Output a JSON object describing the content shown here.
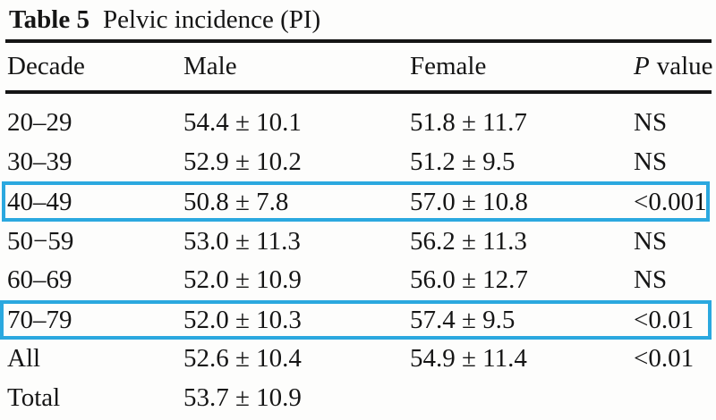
{
  "title": {
    "label": "Table 5",
    "text": "Pelvic incidence (PI)"
  },
  "table": {
    "header": {
      "decade": "Decade",
      "male": "Male",
      "female": "Female",
      "p_italic": "P",
      "p_rest": "value"
    },
    "rows": [
      {
        "decade": "20–29",
        "male": "54.4 ± 10.1",
        "female": "51.8 ± 11.7",
        "p": "NS",
        "highlighted": false
      },
      {
        "decade": "30–39",
        "male": "52.9 ± 10.2",
        "female": "51.2 ± 9.5",
        "p": "NS",
        "highlighted": false
      },
      {
        "decade": "40–49",
        "male": "50.8 ± 7.8",
        "female": "57.0 ± 10.8",
        "p": "<0.001",
        "highlighted": true
      },
      {
        "decade": "50−59",
        "male": "53.0 ± 11.3",
        "female": "56.2 ± 11.3",
        "p": "NS",
        "highlighted": false
      },
      {
        "decade": "60–69",
        "male": "52.0 ± 10.9",
        "female": "56.0 ± 12.7",
        "p": "NS",
        "highlighted": false
      },
      {
        "decade": "70–79",
        "male": "52.0 ± 10.3",
        "female": "57.4 ± 9.5",
        "p": "<0.01",
        "highlighted": true
      },
      {
        "decade": "All",
        "male": "52.6 ± 10.4",
        "female": "54.9 ± 11.4",
        "p": "<0.01",
        "highlighted": false
      },
      {
        "decade": "Total",
        "male": "53.7 ± 10.9",
        "female": "",
        "p": "",
        "highlighted": false
      }
    ]
  },
  "colors": {
    "highlight": "#2ba8df",
    "text": "#151515",
    "rule": "#151515",
    "background": "#fdfdfc"
  }
}
